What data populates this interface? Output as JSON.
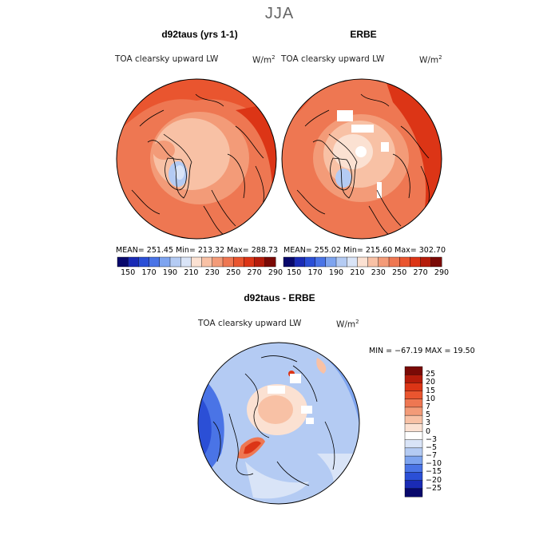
{
  "figure_title": "JJA",
  "panels": [
    {
      "title": "d92taus (yrs 1-1)",
      "subtitle": "TOA clearsky upward LW",
      "units": "W/m",
      "units_exp": "2",
      "stats": "MEAN= 251.45   Min= 213.32   Max= 288.73"
    },
    {
      "title": "ERBE",
      "subtitle": "TOA clearsky upward LW",
      "units": "W/m",
      "units_exp": "2",
      "stats": "MEAN= 255.02   Min= 215.60   Max= 302.70"
    }
  ],
  "diff_panel": {
    "title": "d92taus - ERBE",
    "subtitle": "TOA clearsky upward LW",
    "units": "W/m",
    "units_exp": "2",
    "stats": "MIN = −67.19 MAX =   19.50"
  },
  "colorbar_top": {
    "tick_labels": [
      "150",
      "170",
      "190",
      "210",
      "230",
      "250",
      "270",
      "290"
    ],
    "colors": [
      "#08086b",
      "#1a2bb5",
      "#2b4fd6",
      "#4a74e6",
      "#7ea4ef",
      "#b4cbf3",
      "#d9e4f7",
      "#fbe1d2",
      "#f8c1a5",
      "#f39b78",
      "#ee7752",
      "#e9552f",
      "#dc3516",
      "#b51c0b",
      "#7a0a06"
    ]
  },
  "colorbar_diff": {
    "tick_labels": [
      "25",
      "20",
      "15",
      "10",
      "7",
      "5",
      "3",
      "0",
      "−3",
      "−5",
      "−7",
      "−10",
      "−15",
      "−20",
      "−25"
    ],
    "colors": [
      "#7a0a06",
      "#b51c0b",
      "#dc3516",
      "#e9552f",
      "#ee7752",
      "#f39b78",
      "#f8c1a5",
      "#fbe1d2",
      "#ffffff",
      "#d9e4f7",
      "#b4cbf3",
      "#7ea4ef",
      "#4a74e6",
      "#2b4fd6",
      "#1a2bb5",
      "#08086b"
    ]
  }
}
